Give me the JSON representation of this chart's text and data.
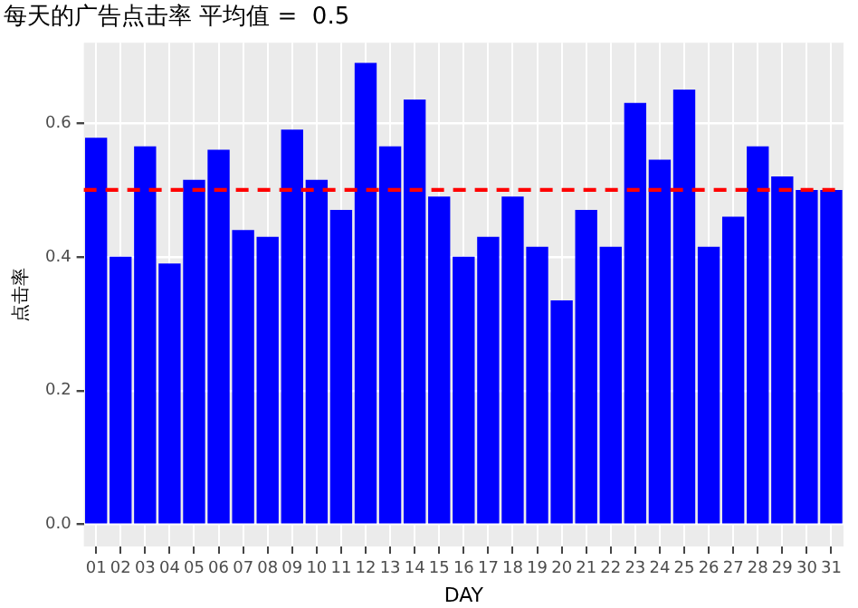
{
  "chart_data": {
    "type": "bar",
    "title": "每天的广告点击率 平均值 =  0.5",
    "xlabel": "DAY",
    "ylabel": "点击率",
    "categories": [
      "01",
      "02",
      "03",
      "04",
      "05",
      "06",
      "07",
      "08",
      "09",
      "10",
      "11",
      "12",
      "13",
      "14",
      "15",
      "16",
      "17",
      "18",
      "19",
      "20",
      "21",
      "22",
      "23",
      "24",
      "25",
      "26",
      "27",
      "28",
      "29",
      "30",
      "31"
    ],
    "values": [
      0.578,
      0.4,
      0.565,
      0.39,
      0.515,
      0.56,
      0.44,
      0.43,
      0.59,
      0.515,
      0.47,
      0.69,
      0.565,
      0.635,
      0.49,
      0.4,
      0.43,
      0.49,
      0.415,
      0.335,
      0.47,
      0.415,
      0.63,
      0.545,
      0.65,
      0.415,
      0.46,
      0.565,
      0.52,
      0.5,
      0.5
    ],
    "color": "#0000ff",
    "ylim": [
      -0.033,
      0.72
    ],
    "yticks": [
      {
        "value": 0,
        "label": "0.0"
      },
      {
        "value": 0.2,
        "label": "0.2"
      },
      {
        "value": 0.4,
        "label": "0.4"
      },
      {
        "value": 0.6,
        "label": "0.6"
      }
    ],
    "grid": true,
    "legend": false,
    "ref_lines": [
      {
        "axis": "y",
        "value": 0.5,
        "color": "#ff0000",
        "line_style": "dashed"
      }
    ]
  }
}
